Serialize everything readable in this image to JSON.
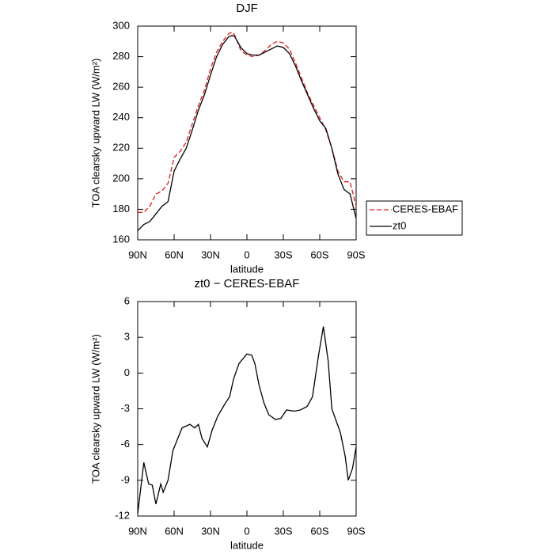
{
  "chart_data": [
    {
      "type": "line",
      "title": "DJF",
      "xlabel": "latitude",
      "ylabel": "TOA clearsky upward LW (W/m²)",
      "x": [
        90,
        85,
        80,
        75,
        70,
        65,
        60,
        55,
        50,
        45,
        40,
        35,
        30,
        25,
        20,
        15,
        12,
        10,
        5,
        0,
        -5,
        -10,
        -15,
        -20,
        -25,
        -30,
        -35,
        -40,
        -45,
        -50,
        -55,
        -60,
        -65,
        -70,
        -75,
        -80,
        -85,
        -90
      ],
      "series": [
        {
          "name": "CERES-EBAF",
          "color": "#e31a1c",
          "dash": true,
          "values": [
            178,
            178,
            182,
            190,
            192,
            197,
            214,
            218,
            224,
            236,
            248,
            258,
            272,
            283,
            290,
            295,
            296,
            294,
            284,
            281,
            280,
            281,
            284,
            288,
            290,
            289,
            285,
            276,
            266,
            256,
            248,
            240,
            232,
            220,
            205,
            198,
            198,
            182
          ]
        },
        {
          "name": "zt0",
          "color": "#000000",
          "dash": false,
          "values": [
            166,
            170,
            172,
            177,
            182,
            185,
            205,
            213,
            220,
            232,
            245,
            255,
            268,
            280,
            288,
            293,
            294,
            293,
            286,
            282,
            281,
            281,
            283,
            285,
            287,
            286,
            282,
            274,
            264,
            255,
            246,
            238,
            233,
            220,
            203,
            193,
            190,
            174
          ]
        }
      ],
      "xlim": [
        90,
        -90
      ],
      "xticks": [
        {
          "value": 90,
          "label": "90N"
        },
        {
          "value": 60,
          "label": "60N"
        },
        {
          "value": 30,
          "label": "30N"
        },
        0,
        {
          "value": -30,
          "label": "30S"
        },
        {
          "value": -60,
          "label": "60S"
        },
        {
          "value": -90,
          "label": "90S"
        }
      ],
      "ylim": [
        160,
        300
      ],
      "yticks": [
        160,
        180,
        200,
        220,
        240,
        260,
        280,
        300
      ],
      "legend": "right"
    },
    {
      "type": "line",
      "title": "zt0 − CERES-EBAF",
      "xlabel": "latitude",
      "ylabel": "TOA clearsky upward LW (W/m²)",
      "x": [
        90,
        85,
        81,
        78,
        75,
        71,
        69,
        65,
        61,
        59,
        53.5,
        47,
        43,
        40,
        37,
        32.6,
        28.7,
        24,
        17.6,
        14.3,
        11,
        6.5,
        0,
        -4,
        -6.5,
        -10,
        -14,
        -18,
        -23.5,
        -28,
        -32.6,
        -39,
        -44,
        -49.6,
        -54,
        -59,
        -63,
        -67,
        -70,
        -77,
        -81,
        -83.5,
        -87,
        -90
      ],
      "series": [
        {
          "name": "zt0 − CERES-EBAF",
          "color": "#000000",
          "dash": false,
          "values": [
            -11.8,
            -7.5,
            -9.3,
            -9.4,
            -11,
            -9.3,
            -10,
            -9,
            -6.5,
            -6,
            -4.6,
            -4.3,
            -4.6,
            -4.3,
            -5.5,
            -6.2,
            -4.8,
            -3.6,
            -2.5,
            -2,
            -0.5,
            0.8,
            1.6,
            1.5,
            0.8,
            -1,
            -2.5,
            -3.5,
            -3.9,
            -3.8,
            -3.1,
            -3.2,
            -3.1,
            -2.8,
            -2,
            1.5,
            3.9,
            1,
            -3,
            -5,
            -7,
            -9,
            -8,
            -6.2
          ]
        }
      ],
      "xlim": [
        90,
        -90
      ],
      "xticks": [
        {
          "value": 90,
          "label": "90N"
        },
        {
          "value": 60,
          "label": "60N"
        },
        {
          "value": 30,
          "label": "30N"
        },
        0,
        {
          "value": -30,
          "label": "30S"
        },
        {
          "value": -60,
          "label": "60S"
        },
        {
          "value": -90,
          "label": "90S"
        }
      ],
      "ylim": [
        -12,
        6
      ],
      "yticks": [
        -12,
        -9,
        -6,
        -3,
        0,
        3,
        6
      ]
    }
  ]
}
